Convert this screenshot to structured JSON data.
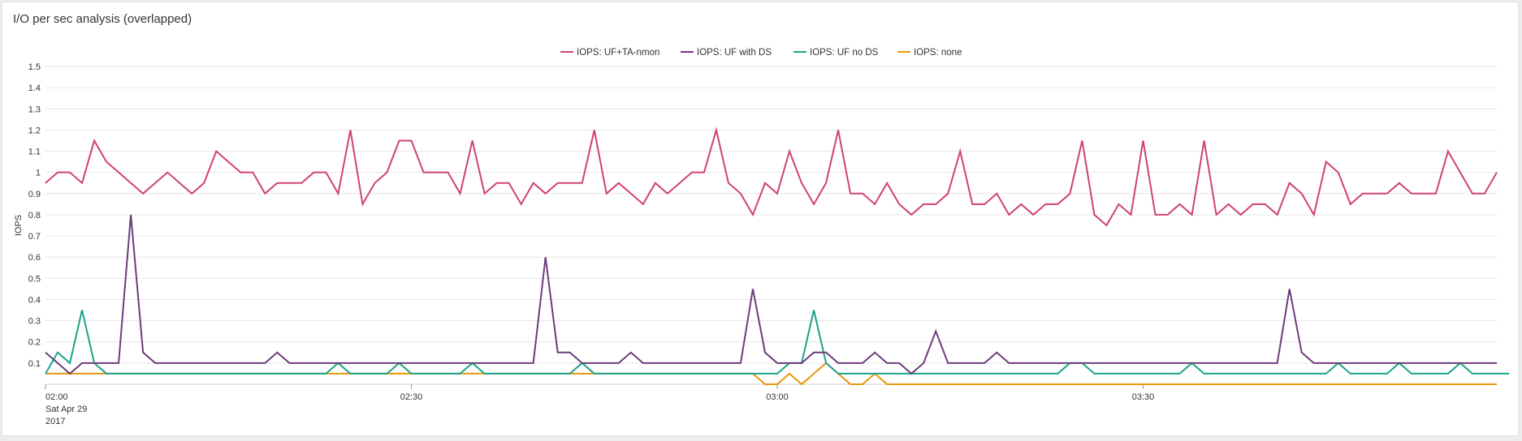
{
  "panel": {
    "title": "I/O per sec analysis (overlapped)"
  },
  "chart_data": {
    "type": "line",
    "title": "I/O per sec analysis (overlapped)",
    "ylabel": "IOPS",
    "xlabel": "",
    "ylim": [
      0,
      1.5
    ],
    "yticks": [
      "0.1",
      "0.2",
      "0.3",
      "0.4",
      "0.5",
      "0.6",
      "0.7",
      "0.8",
      "0.9",
      "1",
      "1.1",
      "1.2",
      "1.3",
      "1.4",
      "1.5"
    ],
    "xticks": [
      {
        "label": "02:00",
        "sub": [
          "Sat Apr 29",
          "2017"
        ],
        "minutes": 0
      },
      {
        "label": "02:30",
        "sub": [],
        "minutes": 30
      },
      {
        "label": "03:00",
        "sub": [],
        "minutes": 60
      },
      {
        "label": "03:30",
        "sub": [],
        "minutes": 90
      }
    ],
    "x_start": "2017-04-29 02:00",
    "x_step_minutes": 1,
    "grid": true,
    "legend_position": "top-center",
    "series": [
      {
        "name": "IOPS: UF+TA-nmon",
        "color": "#d0436a",
        "values": [
          0.95,
          1.0,
          1.0,
          0.95,
          1.15,
          1.05,
          1.0,
          0.95,
          0.9,
          0.95,
          1.0,
          0.95,
          0.9,
          0.95,
          1.1,
          1.05,
          1.0,
          1.0,
          0.9,
          0.95,
          0.95,
          0.95,
          1.0,
          1.0,
          0.9,
          1.2,
          0.85,
          0.95,
          1.0,
          1.15,
          1.15,
          1.0,
          1.0,
          1.0,
          0.9,
          1.15,
          0.9,
          0.95,
          0.95,
          0.85,
          0.95,
          0.9,
          0.95,
          0.95,
          0.95,
          1.2,
          0.9,
          0.95,
          0.9,
          0.85,
          0.95,
          0.9,
          0.95,
          1.0,
          1.0,
          1.2,
          0.95,
          0.9,
          0.8,
          0.95,
          0.9,
          1.1,
          0.95,
          0.85,
          0.95,
          1.2,
          0.9,
          0.9,
          0.85,
          0.95,
          0.85,
          0.8,
          0.85,
          0.85,
          0.9,
          1.1,
          0.85,
          0.85,
          0.9,
          0.8,
          0.85,
          0.8,
          0.85,
          0.85,
          0.9,
          1.15,
          0.8,
          0.75,
          0.85,
          0.8,
          1.15,
          0.8,
          0.8,
          0.85,
          0.8,
          1.15,
          0.8,
          0.85,
          0.8,
          0.85,
          0.85,
          0.8,
          0.95,
          0.9,
          0.8,
          1.05,
          1.0,
          0.85,
          0.9,
          0.9,
          0.9,
          0.95,
          0.9,
          0.9,
          0.9,
          1.1,
          1.0,
          0.9,
          0.9,
          1.0
        ]
      },
      {
        "name": "IOPS: UF with DS",
        "color": "#6d3c7b",
        "values": [
          0.15,
          0.1,
          0.05,
          0.1,
          0.1,
          0.1,
          0.1,
          0.8,
          0.15,
          0.1,
          0.1,
          0.1,
          0.1,
          0.1,
          0.1,
          0.1,
          0.1,
          0.1,
          0.1,
          0.15,
          0.1,
          0.1,
          0.1,
          0.1,
          0.1,
          0.1,
          0.1,
          0.1,
          0.1,
          0.1,
          0.1,
          0.1,
          0.1,
          0.1,
          0.1,
          0.1,
          0.1,
          0.1,
          0.1,
          0.1,
          0.1,
          0.6,
          0.15,
          0.15,
          0.1,
          0.1,
          0.1,
          0.1,
          0.15,
          0.1,
          0.1,
          0.1,
          0.1,
          0.1,
          0.1,
          0.1,
          0.1,
          0.1,
          0.45,
          0.15,
          0.1,
          0.1,
          0.1,
          0.15,
          0.15,
          0.1,
          0.1,
          0.1,
          0.15,
          0.1,
          0.1,
          0.05,
          0.1,
          0.25,
          0.1,
          0.1,
          0.1,
          0.1,
          0.15,
          0.1,
          0.1,
          0.1,
          0.1,
          0.1,
          0.1,
          0.1,
          0.1,
          0.1,
          0.1,
          0.1,
          0.1,
          0.1,
          0.1,
          0.1,
          0.1,
          0.1,
          0.1,
          0.1,
          0.1,
          0.1,
          0.1,
          0.1,
          0.45,
          0.15,
          0.1,
          0.1,
          0.1,
          0.1,
          0.1,
          0.1,
          0.1,
          0.1,
          0.1,
          0.1,
          0.1,
          0.1,
          0.1,
          0.1,
          0.1,
          0.1
        ]
      },
      {
        "name": "IOPS: UF no DS",
        "color": "#1aa38a",
        "values": [
          0.05,
          0.15,
          0.1,
          0.35,
          0.1,
          0.05,
          0.05,
          0.05,
          0.05,
          0.05,
          0.05,
          0.05,
          0.05,
          0.05,
          0.05,
          0.05,
          0.05,
          0.05,
          0.05,
          0.05,
          0.05,
          0.05,
          0.05,
          0.05,
          0.1,
          0.05,
          0.05,
          0.05,
          0.05,
          0.1,
          0.05,
          0.05,
          0.05,
          0.05,
          0.05,
          0.1,
          0.05,
          0.05,
          0.05,
          0.05,
          0.05,
          0.05,
          0.05,
          0.05,
          0.1,
          0.05,
          0.05,
          0.05,
          0.05,
          0.05,
          0.05,
          0.05,
          0.05,
          0.05,
          0.05,
          0.05,
          0.05,
          0.05,
          0.05,
          0.05,
          0.05,
          0.1,
          0.1,
          0.35,
          0.1,
          0.05,
          0.05,
          0.05,
          0.05,
          0.05,
          0.05,
          0.05,
          0.05,
          0.05,
          0.05,
          0.05,
          0.05,
          0.05,
          0.05,
          0.05,
          0.05,
          0.05,
          0.05,
          0.05,
          0.1,
          0.1,
          0.05,
          0.05,
          0.05,
          0.05,
          0.05,
          0.05,
          0.05,
          0.05,
          0.1,
          0.05,
          0.05,
          0.05,
          0.05,
          0.05,
          0.05,
          0.05,
          0.05,
          0.05,
          0.05,
          0.05,
          0.1,
          0.05,
          0.05,
          0.05,
          0.05,
          0.1,
          0.05,
          0.05,
          0.05,
          0.05,
          0.1,
          0.05,
          0.05,
          0.05,
          0.05
        ]
      },
      {
        "name": "IOPS: none",
        "color": "#e8960c",
        "values": [
          0.05,
          0.05,
          0.05,
          0.05,
          0.05,
          0.05,
          0.05,
          0.05,
          0.05,
          0.05,
          0.05,
          0.05,
          0.05,
          0.05,
          0.05,
          0.05,
          0.05,
          0.05,
          0.05,
          0.05,
          0.05,
          0.05,
          0.05,
          0.05,
          0.05,
          0.05,
          0.05,
          0.05,
          0.05,
          0.05,
          0.05,
          0.05,
          0.05,
          0.05,
          0.05,
          0.05,
          0.05,
          0.05,
          0.05,
          0.05,
          0.05,
          0.05,
          0.05,
          0.05,
          0.05,
          0.05,
          0.05,
          0.05,
          0.05,
          0.05,
          0.05,
          0.05,
          0.05,
          0.05,
          0.05,
          0.05,
          0.05,
          0.05,
          0.05,
          0.0,
          0.0,
          0.05,
          0.0,
          0.05,
          0.1,
          0.05,
          0.0,
          0.0,
          0.05,
          0.0,
          0.0,
          0.0,
          0.0,
          0.0,
          0.0,
          0.0,
          0.0,
          0.0,
          0.0,
          0.0,
          0.0,
          0.0,
          0.0,
          0.0,
          0.0,
          0.0,
          0.0,
          0.0,
          0.0,
          0.0,
          0.0,
          0.0,
          0.0,
          0.0,
          0.0,
          0.0,
          0.0,
          0.0,
          0.0,
          0.0,
          0.0,
          0.0,
          0.0,
          0.0,
          0.0,
          0.0,
          0.0,
          0.0,
          0.0,
          0.0,
          0.0,
          0.0,
          0.0,
          0.0,
          0.0,
          0.0,
          0.0,
          0.0,
          0.0,
          0.0
        ]
      }
    ]
  }
}
